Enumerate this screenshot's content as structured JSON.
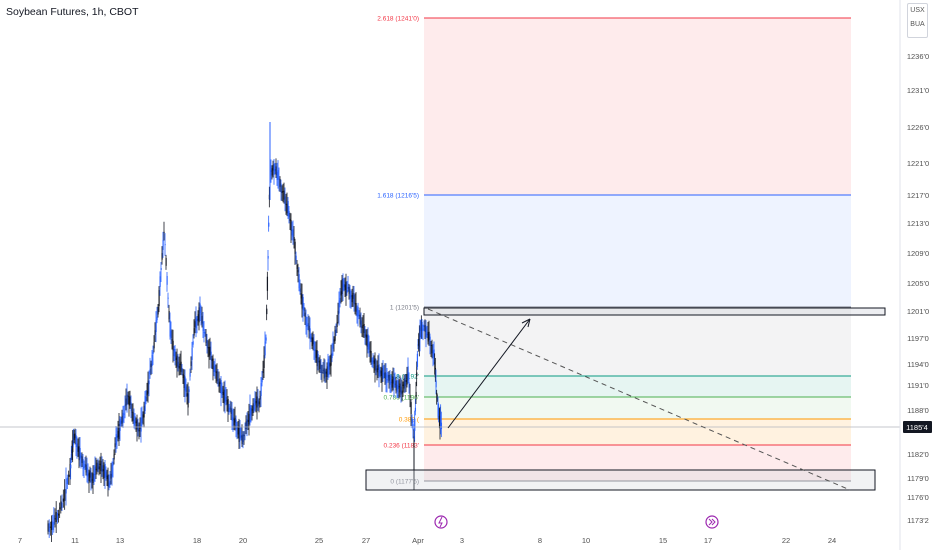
{
  "header": {
    "title": "Soybean Futures, 1h, CBOT"
  },
  "currency": {
    "line1": "USX",
    "line2": "BUA"
  },
  "chart_data": {
    "type": "candlestick",
    "symbol": "Soybean Futures",
    "timeframe": "1h",
    "exchange": "CBOT",
    "y_ticks": [
      "1236'0",
      "1231'0",
      "1226'0",
      "1221'0",
      "1217'0",
      "1213'0",
      "1209'0",
      "1205'0",
      "1201'0",
      "1197'0",
      "1194'0",
      "1191'0",
      "1188'0",
      "1182'0",
      "1179'0",
      "1176'0",
      "1173'2"
    ],
    "x_ticks": [
      "7",
      "11",
      "13",
      "18",
      "20",
      "25",
      "27",
      "Apr",
      "3",
      "8",
      "10",
      "15",
      "17",
      "22",
      "24"
    ],
    "current_price_label": "1185'4",
    "fib_levels": [
      {
        "label": "2.618 (1241'0)",
        "color": "#f23645"
      },
      {
        "label": "1.618 (1216'5)",
        "color": "#2962ff"
      },
      {
        "label": "1 (1201'5)",
        "color": "#787b86"
      },
      {
        "label": "0.786 (1196'",
        "color": "#4caf50"
      },
      {
        "label": "0.618 (1192'",
        "color": "#089981"
      },
      {
        "label": "0.382 (",
        "color": "#ff9800"
      },
      {
        "label": "0.236 (1183'",
        "color": "#f23645"
      },
      {
        "label": "0 (1177'5)",
        "color": "#787b86"
      }
    ],
    "annotations": [
      "projection-arrow",
      "dashed-trend-line",
      "resistance-box",
      "support-box"
    ]
  }
}
